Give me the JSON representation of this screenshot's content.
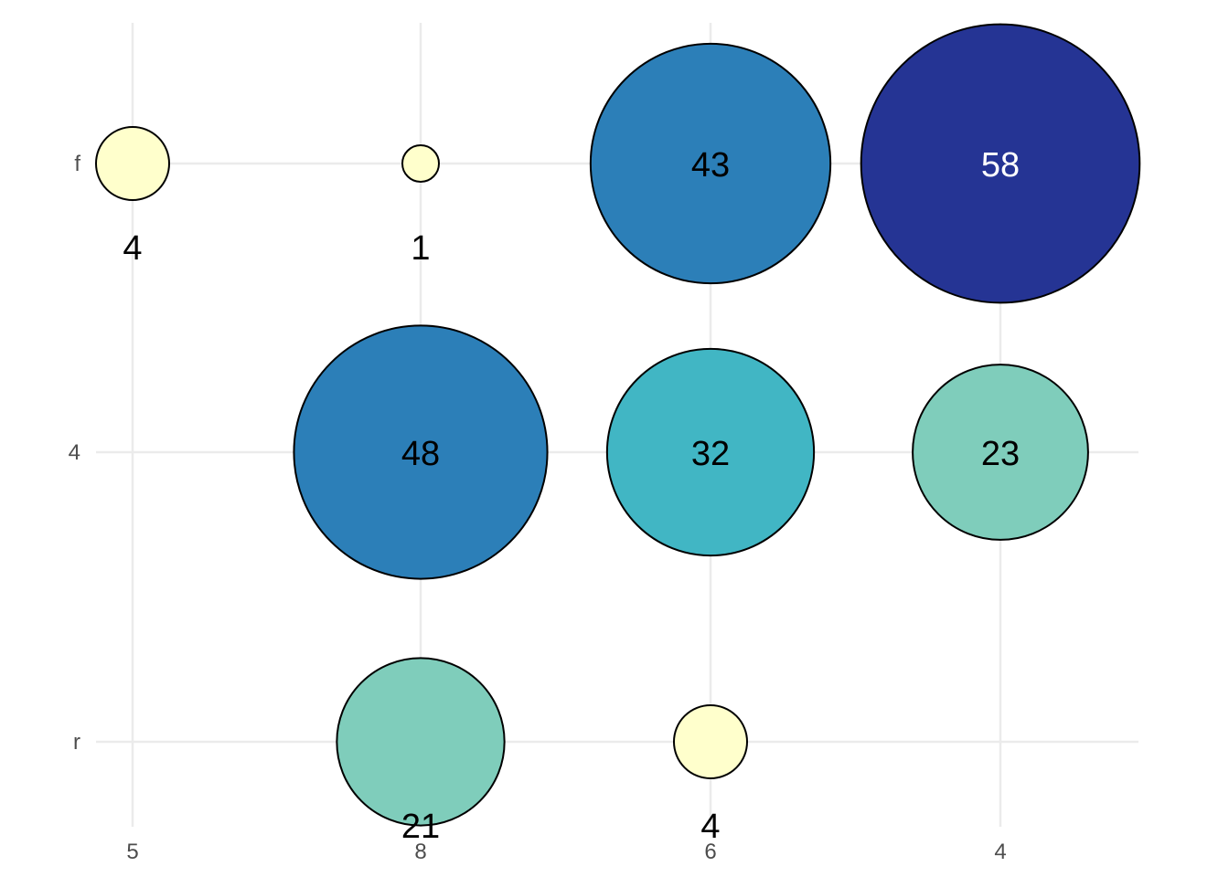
{
  "chart_data": {
    "type": "scatter",
    "subtype": "bubble-balloon-plot",
    "title": "",
    "xlabel": "",
    "ylabel": "",
    "x_categories": [
      "5",
      "8",
      "6",
      "4"
    ],
    "y_categories": [
      "f",
      "4",
      "r"
    ],
    "grid": true,
    "legend": "none",
    "points": [
      {
        "x": "5",
        "y": "f",
        "value": 4,
        "fill": "#FFFFCC",
        "label_color": "#000000",
        "label_position": "below"
      },
      {
        "x": "8",
        "y": "f",
        "value": 1,
        "fill": "#FFFFCC",
        "label_color": "#000000",
        "label_position": "below"
      },
      {
        "x": "6",
        "y": "f",
        "value": 43,
        "fill": "#2C7FB8",
        "label_color": "#000000",
        "label_position": "center"
      },
      {
        "x": "4",
        "y": "f",
        "value": 58,
        "fill": "#253494",
        "label_color": "#FFFFFF",
        "label_position": "center"
      },
      {
        "x": "8",
        "y": "4",
        "value": 48,
        "fill": "#2C7FB8",
        "label_color": "#000000",
        "label_position": "center"
      },
      {
        "x": "6",
        "y": "4",
        "value": 32,
        "fill": "#41B6C4",
        "label_color": "#000000",
        "label_position": "center"
      },
      {
        "x": "4",
        "y": "4",
        "value": 23,
        "fill": "#7FCDBB",
        "label_color": "#000000",
        "label_position": "center"
      },
      {
        "x": "8",
        "y": "r",
        "value": 21,
        "fill": "#7FCDBB",
        "label_color": "#000000",
        "label_position": "below"
      },
      {
        "x": "6",
        "y": "r",
        "value": 4,
        "fill": "#FFFFCC",
        "label_color": "#000000",
        "label_position": "below"
      }
    ]
  }
}
